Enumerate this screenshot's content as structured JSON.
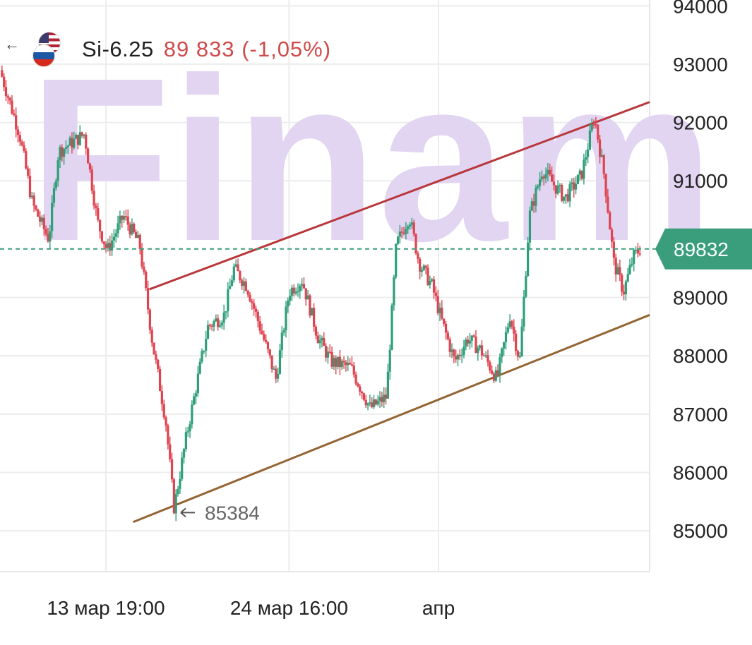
{
  "header": {
    "ticker": "Si-6.25",
    "price": "89 833",
    "change": "(-1,05%)",
    "icons": [
      "back-arrow-icon",
      "usd-flag-icon",
      "rub-flag-icon"
    ]
  },
  "watermark": "Finam",
  "last_price_label": "89832",
  "min_label": "85384",
  "colors": {
    "up": "#2e9e7a",
    "down": "#e0434f",
    "upper_channel": "#b8373a",
    "lower_channel": "#946433",
    "last_price": "#3a9e7c",
    "watermark": "#e2d5f2"
  },
  "chart_data": {
    "type": "candlestick",
    "ylim": [
      84300,
      94100
    ],
    "y_ticks": [
      85000,
      86000,
      87000,
      88000,
      89000,
      91000,
      92000,
      93000,
      94000
    ],
    "x_tick_labels": [
      "13 мар 19:00",
      "24 мар 16:00",
      "апр"
    ],
    "last_price": 89832,
    "period_min": 85384,
    "trend_lines": [
      {
        "name": "upper",
        "from": [
          0.23,
          89140
        ],
        "to": [
          1.0,
          92350
        ]
      },
      {
        "name": "lower",
        "from": [
          0.205,
          85150
        ],
        "to": [
          1.0,
          88700
        ]
      }
    ],
    "close_path": [
      [
        0.0,
        92900
      ],
      [
        0.03,
        91800
      ],
      [
        0.05,
        90600
      ],
      [
        0.075,
        90000
      ],
      [
        0.09,
        91500
      ],
      [
        0.13,
        91800
      ],
      [
        0.15,
        90300
      ],
      [
        0.165,
        89800
      ],
      [
        0.19,
        90400
      ],
      [
        0.215,
        89900
      ],
      [
        0.235,
        88200
      ],
      [
        0.255,
        86900
      ],
      [
        0.268,
        85384
      ],
      [
        0.285,
        86500
      ],
      [
        0.32,
        88500
      ],
      [
        0.345,
        88700
      ],
      [
        0.36,
        89500
      ],
      [
        0.38,
        89200
      ],
      [
        0.4,
        88500
      ],
      [
        0.425,
        87600
      ],
      [
        0.445,
        89100
      ],
      [
        0.465,
        89300
      ],
      [
        0.49,
        88300
      ],
      [
        0.51,
        87900
      ],
      [
        0.54,
        87800
      ],
      [
        0.57,
        87100
      ],
      [
        0.595,
        87300
      ],
      [
        0.61,
        89900
      ],
      [
        0.63,
        90400
      ],
      [
        0.645,
        89600
      ],
      [
        0.665,
        89200
      ],
      [
        0.68,
        88600
      ],
      [
        0.7,
        87900
      ],
      [
        0.72,
        88300
      ],
      [
        0.74,
        88100
      ],
      [
        0.765,
        87600
      ],
      [
        0.785,
        88700
      ],
      [
        0.8,
        87900
      ],
      [
        0.815,
        90400
      ],
      [
        0.835,
        91200
      ],
      [
        0.855,
        90900
      ],
      [
        0.87,
        90700
      ],
      [
        0.895,
        91100
      ],
      [
        0.915,
        92100
      ],
      [
        0.93,
        91100
      ],
      [
        0.945,
        89600
      ],
      [
        0.96,
        89100
      ],
      [
        0.975,
        89700
      ],
      [
        0.985,
        89833
      ]
    ]
  }
}
